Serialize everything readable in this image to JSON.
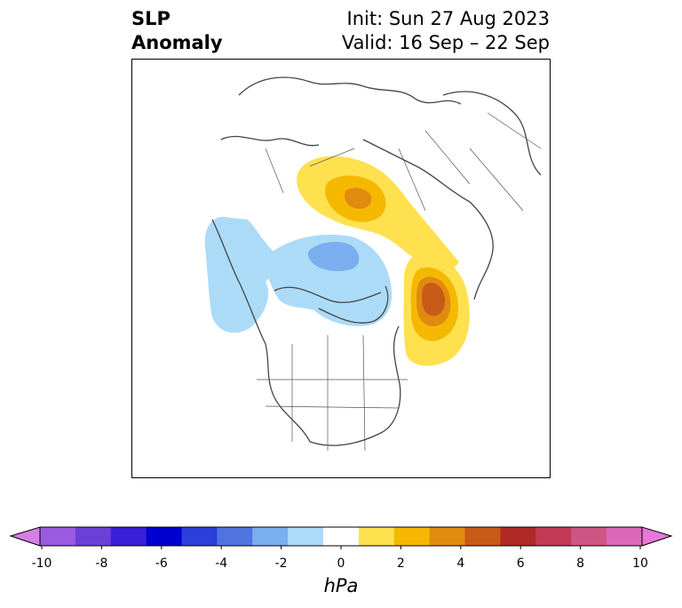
{
  "title": {
    "line1": "SLP",
    "line2": "Anomaly"
  },
  "dates": {
    "init": "Init: Sun 27 Aug 2023",
    "valid": "Valid: 16 Sep – 22 Sep"
  },
  "colorbar": {
    "unit": "hPa",
    "ticks": [
      "-10",
      "-8",
      "-6",
      "-4",
      "-2",
      "0",
      "2",
      "4",
      "6",
      "8",
      "10"
    ],
    "colors": [
      "#d57fe6",
      "#9a5be0",
      "#6b3fd8",
      "#3a1fd6",
      "#0000d0",
      "#2a40d8",
      "#4f74e0",
      "#7aaeee",
      "#acdbf8",
      "#ffffff",
      "#ffe150",
      "#f5b800",
      "#e08a10",
      "#c85a18",
      "#b02a25",
      "#c23a55",
      "#cf5585",
      "#dc68b8",
      "#e877da"
    ]
  },
  "map": {
    "negative_color_light": "#acdbf8",
    "negative_color_mid": "#7aaeee",
    "positive_colors": [
      "#ffe150",
      "#f5b800",
      "#e08a10",
      "#c85a18"
    ]
  }
}
